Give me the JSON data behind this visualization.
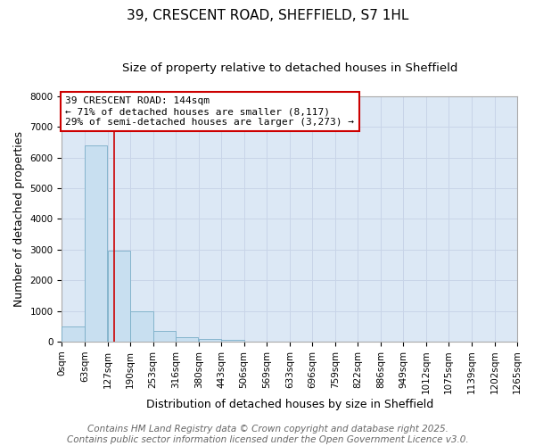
{
  "title_line1": "39, CRESCENT ROAD, SHEFFIELD, S7 1HL",
  "title_line2": "Size of property relative to detached houses in Sheffield",
  "xlabel": "Distribution of detached houses by size in Sheffield",
  "ylabel": "Number of detached properties",
  "bar_values": [
    500,
    6400,
    2950,
    1000,
    350,
    150,
    100,
    50,
    0,
    0,
    0,
    0,
    0,
    0,
    0,
    0,
    0,
    0,
    0,
    0
  ],
  "bin_edges": [
    0,
    63,
    127,
    190,
    253,
    316,
    380,
    443,
    506,
    569,
    633,
    696,
    759,
    822,
    886,
    949,
    1012,
    1075,
    1139,
    1202,
    1265
  ],
  "x_tick_labels": [
    "0sqm",
    "63sqm",
    "127sqm",
    "190sqm",
    "253sqm",
    "316sqm",
    "380sqm",
    "443sqm",
    "506sqm",
    "569sqm",
    "633sqm",
    "696sqm",
    "759sqm",
    "822sqm",
    "886sqm",
    "949sqm",
    "1012sqm",
    "1075sqm",
    "1139sqm",
    "1202sqm",
    "1265sqm"
  ],
  "bar_color": "#c8dff0",
  "bar_edge_color": "#7aaec8",
  "property_line_x": 144,
  "annotation_text": "39 CRESCENT ROAD: 144sqm\n← 71% of detached houses are smaller (8,117)\n29% of semi-detached houses are larger (3,273) →",
  "annotation_box_color": "#ffffff",
  "annotation_box_edge_color": "#cc0000",
  "annotation_text_color": "#000000",
  "vline_color": "#cc0000",
  "ylim": [
    0,
    8000
  ],
  "yticks": [
    0,
    1000,
    2000,
    3000,
    4000,
    5000,
    6000,
    7000,
    8000
  ],
  "grid_color": "#c8d4e8",
  "background_color": "#dce8f5",
  "footer_text": "Contains HM Land Registry data © Crown copyright and database right 2025.\nContains public sector information licensed under the Open Government Licence v3.0.",
  "title_fontsize": 11,
  "subtitle_fontsize": 9.5,
  "axis_label_fontsize": 9,
  "tick_fontsize": 7.5,
  "annotation_fontsize": 8,
  "footer_fontsize": 7.5
}
